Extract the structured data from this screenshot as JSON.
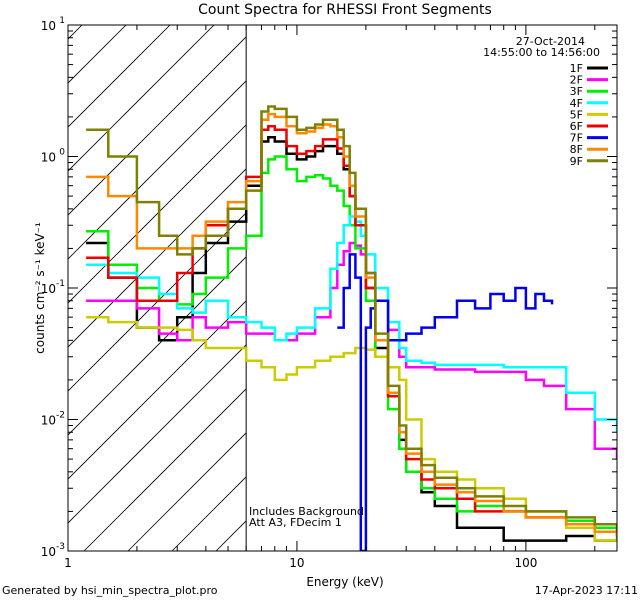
{
  "chart_data": {
    "type": "line",
    "title": "Count Spectra for RHESSI Front Segments",
    "xlabel": "Energy (keV)",
    "ylabel": "counts cm⁻² s⁻¹ keV⁻¹",
    "xscale": "log",
    "yscale": "log",
    "xlim": [
      1,
      250
    ],
    "ylim": [
      0.001,
      10
    ],
    "x_ticks": [
      {
        "v": 1,
        "label": "1"
      },
      {
        "v": 10,
        "label": "10"
      },
      {
        "v": 100,
        "label": "100"
      }
    ],
    "y_ticks": [
      {
        "v": 0.001,
        "base": "10",
        "exp": "-3"
      },
      {
        "v": 0.01,
        "base": "10",
        "exp": "-2"
      },
      {
        "v": 0.1,
        "base": "10",
        "exp": "-1"
      },
      {
        "v": 1,
        "base": "10",
        "exp": "0"
      },
      {
        "v": 10,
        "base": "10",
        "exp": "1"
      }
    ],
    "hatched_region": [
      1,
      6
    ],
    "threshold_line_keV": 6,
    "date": "27-Oct-2014",
    "time_range": "14:55:00 to 14:56:00",
    "annotation_line1": "Includes Background",
    "annotation_line2": "Att A3, FDecim 1",
    "legend_position": "top-right",
    "series": [
      {
        "name": "1F",
        "color": "#000000",
        "x": [
          1.2,
          1.5,
          2,
          2.5,
          3,
          3.5,
          4,
          5,
          6,
          7,
          7.5,
          8,
          9,
          10,
          11,
          12,
          13,
          14,
          15,
          16,
          17,
          18,
          20,
          22,
          25,
          28,
          30,
          35,
          40,
          50,
          60,
          80,
          100,
          150,
          200,
          250
        ],
        "values": [
          0.22,
          0.12,
          0.05,
          0.04,
          0.06,
          0.13,
          0.22,
          0.32,
          0.6,
          1.3,
          1.4,
          1.3,
          1.05,
          0.95,
          1.0,
          1.1,
          1.2,
          1.2,
          1.05,
          0.8,
          0.5,
          0.3,
          0.1,
          0.035,
          0.015,
          0.007,
          0.004,
          0.0028,
          0.0022,
          0.0015,
          0.0015,
          0.0012,
          0.0012,
          0.0013,
          0.0012,
          0.0012
        ]
      },
      {
        "name": "2F",
        "color": "#ff00ff",
        "x": [
          1.2,
          1.5,
          2,
          2.5,
          3,
          3.5,
          4,
          5,
          6,
          7,
          8,
          9,
          10,
          12,
          14,
          15,
          16,
          17,
          18,
          19,
          20,
          22,
          25,
          28,
          30,
          35,
          40,
          50,
          60,
          80,
          100,
          120,
          150,
          200,
          250
        ],
        "values": [
          0.08,
          0.08,
          0.07,
          0.045,
          0.04,
          0.06,
          0.05,
          0.055,
          0.045,
          0.045,
          0.04,
          0.04,
          0.045,
          0.06,
          0.1,
          0.15,
          0.19,
          0.22,
          0.21,
          0.18,
          0.13,
          0.08,
          0.048,
          0.03,
          0.025,
          0.025,
          0.024,
          0.024,
          0.023,
          0.023,
          0.02,
          0.018,
          0.012,
          0.006,
          0.005
        ]
      },
      {
        "name": "3F",
        "color": "#00ee00",
        "x": [
          1.2,
          1.5,
          2,
          2.5,
          3,
          3.5,
          4,
          5,
          6,
          7,
          7.5,
          8,
          9,
          10,
          11,
          12,
          13,
          14,
          15,
          16,
          17,
          18,
          20,
          22,
          25,
          28,
          30,
          35,
          40,
          50,
          60,
          80,
          100,
          150,
          200,
          250
        ],
        "values": [
          0.27,
          0.15,
          0.1,
          0.08,
          0.075,
          0.09,
          0.12,
          0.2,
          0.25,
          0.75,
          0.95,
          1.0,
          0.8,
          0.65,
          0.7,
          0.72,
          0.68,
          0.6,
          0.55,
          0.42,
          0.3,
          0.2,
          0.08,
          0.03,
          0.012,
          0.006,
          0.004,
          0.003,
          0.0025,
          0.002,
          0.0022,
          0.002,
          0.002,
          0.0017,
          0.0015,
          0.0012
        ]
      },
      {
        "name": "4F",
        "color": "#00ffff",
        "x": [
          1.2,
          1.5,
          2,
          2.5,
          3,
          3.5,
          4,
          5,
          6,
          7,
          8,
          9,
          10,
          12,
          14,
          15,
          16,
          17,
          18,
          19,
          20,
          22,
          25,
          28,
          30,
          35,
          40,
          50,
          60,
          80,
          100,
          120,
          150,
          200,
          250
        ],
        "values": [
          0.15,
          0.13,
          0.12,
          0.09,
          0.07,
          0.065,
          0.08,
          0.06,
          0.055,
          0.05,
          0.04,
          0.045,
          0.05,
          0.07,
          0.14,
          0.22,
          0.3,
          0.35,
          0.32,
          0.25,
          0.18,
          0.1,
          0.055,
          0.035,
          0.028,
          0.027,
          0.026,
          0.026,
          0.026,
          0.025,
          0.025,
          0.025,
          0.016,
          0.01,
          0.008
        ]
      },
      {
        "name": "5F",
        "color": "#cccc00",
        "x": [
          1.2,
          1.5,
          2,
          2.5,
          3,
          3.5,
          4,
          5,
          6,
          7,
          8,
          9,
          10,
          12,
          14,
          16,
          18,
          20,
          22,
          25,
          28,
          30,
          35,
          40,
          50,
          60,
          80,
          100,
          150,
          200,
          250
        ],
        "values": [
          0.06,
          0.055,
          0.05,
          0.05,
          0.048,
          0.04,
          0.035,
          0.035,
          0.028,
          0.025,
          0.02,
          0.022,
          0.025,
          0.028,
          0.03,
          0.032,
          0.035,
          0.034,
          0.03,
          0.025,
          0.02,
          0.01,
          0.005,
          0.004,
          0.0035,
          0.003,
          0.0025,
          0.002,
          0.0015,
          0.0012,
          0.0012
        ]
      },
      {
        "name": "6F",
        "color": "#ee0000",
        "x": [
          1.2,
          1.5,
          2,
          2.5,
          3,
          3.5,
          4,
          5,
          6,
          7,
          7.5,
          8,
          9,
          10,
          11,
          12,
          13,
          14,
          15,
          16,
          17,
          18,
          20,
          22,
          25,
          28,
          30,
          35,
          40,
          50,
          60,
          80,
          100,
          150,
          200,
          250
        ],
        "values": [
          0.17,
          0.12,
          0.08,
          0.08,
          0.13,
          0.2,
          0.3,
          0.4,
          0.7,
          1.6,
          1.7,
          1.6,
          1.2,
          1.05,
          1.1,
          1.2,
          1.35,
          1.35,
          1.15,
          0.85,
          0.5,
          0.3,
          0.1,
          0.04,
          0.015,
          0.008,
          0.005,
          0.0035,
          0.003,
          0.0025,
          0.002,
          0.002,
          0.0018,
          0.0016,
          0.0014,
          0.0013
        ]
      },
      {
        "name": "7F",
        "color": "#0000ee",
        "x": [
          15,
          16,
          17,
          18,
          19,
          20,
          21,
          22,
          25,
          30,
          35,
          40,
          50,
          60,
          70,
          80,
          90,
          100,
          110,
          120,
          130
        ],
        "values": [
          0.05,
          0.1,
          0.18,
          0.12,
          0.001,
          0.05,
          0.07,
          0.08,
          0.04,
          0.045,
          0.05,
          0.06,
          0.08,
          0.07,
          0.09,
          0.08,
          0.1,
          0.07,
          0.09,
          0.08,
          0.075
        ]
      },
      {
        "name": "8F",
        "color": "#ff8800",
        "x": [
          1.2,
          1.5,
          2,
          2.5,
          3,
          3.5,
          4,
          5,
          6,
          7,
          7.5,
          8,
          9,
          10,
          11,
          12,
          13,
          14,
          15,
          16,
          17,
          18,
          20,
          22,
          25,
          28,
          30,
          35,
          40,
          50,
          60,
          80,
          100,
          150,
          200,
          250
        ],
        "values": [
          0.7,
          0.5,
          0.2,
          0.2,
          0.2,
          0.25,
          0.32,
          0.45,
          0.65,
          1.9,
          2.1,
          2.0,
          1.7,
          1.5,
          1.55,
          1.65,
          1.75,
          1.7,
          1.4,
          1.0,
          0.6,
          0.35,
          0.12,
          0.04,
          0.016,
          0.008,
          0.0055,
          0.004,
          0.0032,
          0.0028,
          0.0024,
          0.002,
          0.0018,
          0.0016,
          0.0014,
          0.0013
        ]
      },
      {
        "name": "9F",
        "color": "#808000",
        "x": [
          1.2,
          1.5,
          2,
          2.5,
          3,
          3.5,
          4,
          5,
          6,
          7,
          7.5,
          8,
          9,
          10,
          11,
          12,
          13,
          14,
          15,
          16,
          17,
          18,
          20,
          22,
          25,
          28,
          30,
          35,
          40,
          50,
          60,
          80,
          100,
          150,
          200,
          250
        ],
        "values": [
          1.6,
          1.0,
          0.45,
          0.25,
          0.18,
          0.2,
          0.25,
          0.4,
          0.55,
          2.2,
          2.4,
          2.3,
          2.0,
          1.6,
          1.65,
          1.75,
          1.9,
          1.9,
          1.6,
          1.2,
          0.75,
          0.4,
          0.13,
          0.045,
          0.018,
          0.009,
          0.006,
          0.0045,
          0.0036,
          0.003,
          0.0026,
          0.0022,
          0.002,
          0.0018,
          0.0016,
          0.0014
        ]
      }
    ]
  },
  "footer": {
    "generated_by": "Generated by hsi_min_spectra_plot.pro",
    "timestamp": "17-Apr-2023 17:11"
  }
}
